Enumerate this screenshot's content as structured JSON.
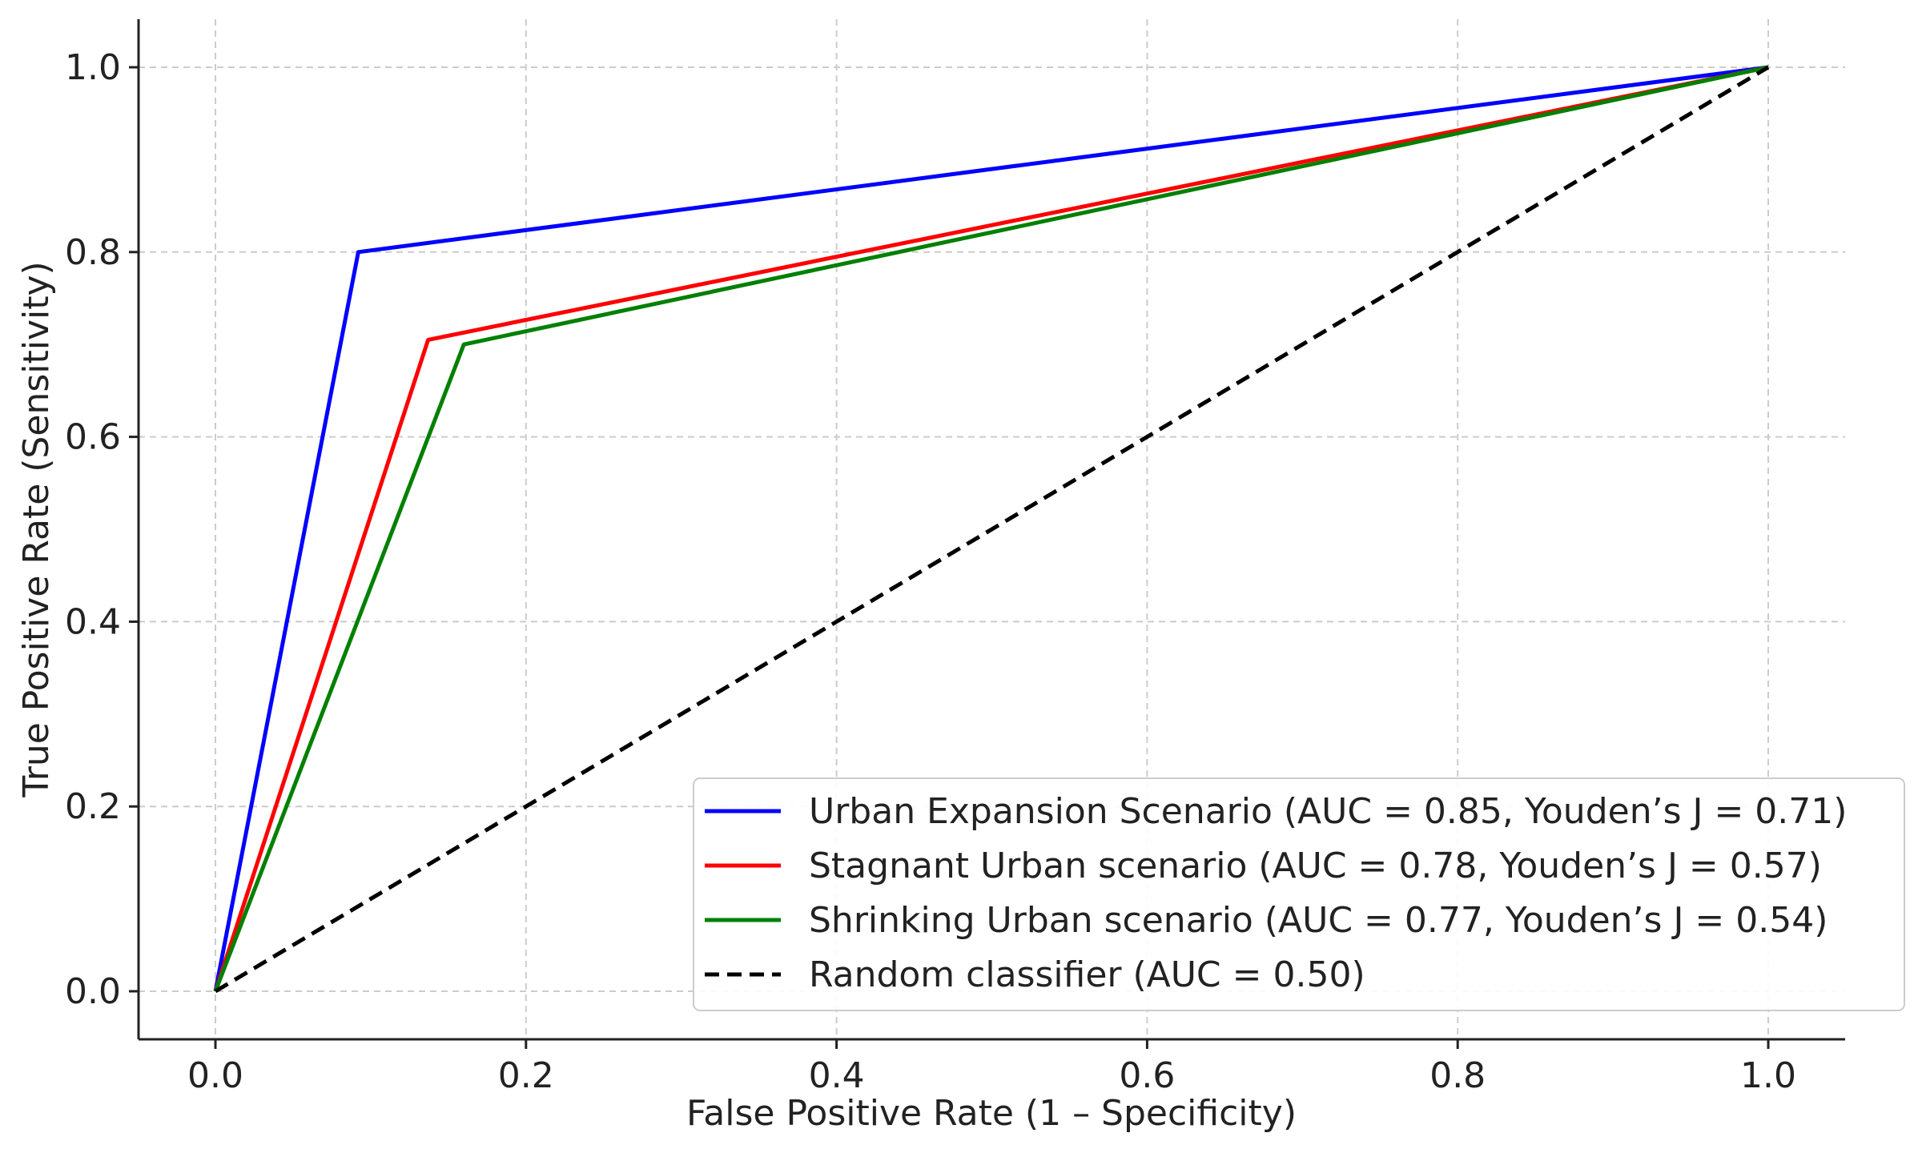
{
  "chart_data": {
    "type": "line",
    "title": "",
    "xlabel": "False Positive Rate (1 – Specificity)",
    "ylabel": "True Positive Rate (Sensitivity)",
    "xlim": [
      -0.05,
      1.05
    ],
    "ylim": [
      -0.05,
      1.05
    ],
    "xticks": [
      0.0,
      0.2,
      0.4,
      0.6,
      0.8,
      1.0
    ],
    "xtick_labels": [
      "0.0",
      "0.2",
      "0.4",
      "0.6",
      "0.8",
      "1.0"
    ],
    "yticks": [
      0.0,
      0.2,
      0.4,
      0.6,
      0.8,
      1.0
    ],
    "ytick_labels": [
      "0.0",
      "0.2",
      "0.4",
      "0.6",
      "0.8",
      "1.0"
    ],
    "grid": true,
    "legend_position": "lower-right",
    "series": [
      {
        "name": "Urban Expansion Scenario (AUC = 0.85, Youden’s J = 0.71)",
        "color": "#0000ff",
        "style": "solid",
        "x": [
          0.0,
          0.092,
          1.0
        ],
        "y": [
          0.0,
          0.8,
          1.0
        ]
      },
      {
        "name": "Stagnant Urban scenario (AUC = 0.78, Youden’s J = 0.57)",
        "color": "#ff0000",
        "style": "solid",
        "x": [
          0.0,
          0.137,
          1.0
        ],
        "y": [
          0.0,
          0.705,
          1.0
        ]
      },
      {
        "name": "Shrinking Urban scenario (AUC = 0.77, Youden’s J = 0.54)",
        "color": "#008000",
        "style": "solid",
        "x": [
          0.0,
          0.16,
          1.0
        ],
        "y": [
          0.0,
          0.7,
          1.0
        ]
      },
      {
        "name": "Random classifier (AUC = 0.50)",
        "color": "#000000",
        "style": "dashed",
        "x": [
          0.0,
          1.0
        ],
        "y": [
          0.0,
          1.0
        ]
      }
    ]
  }
}
